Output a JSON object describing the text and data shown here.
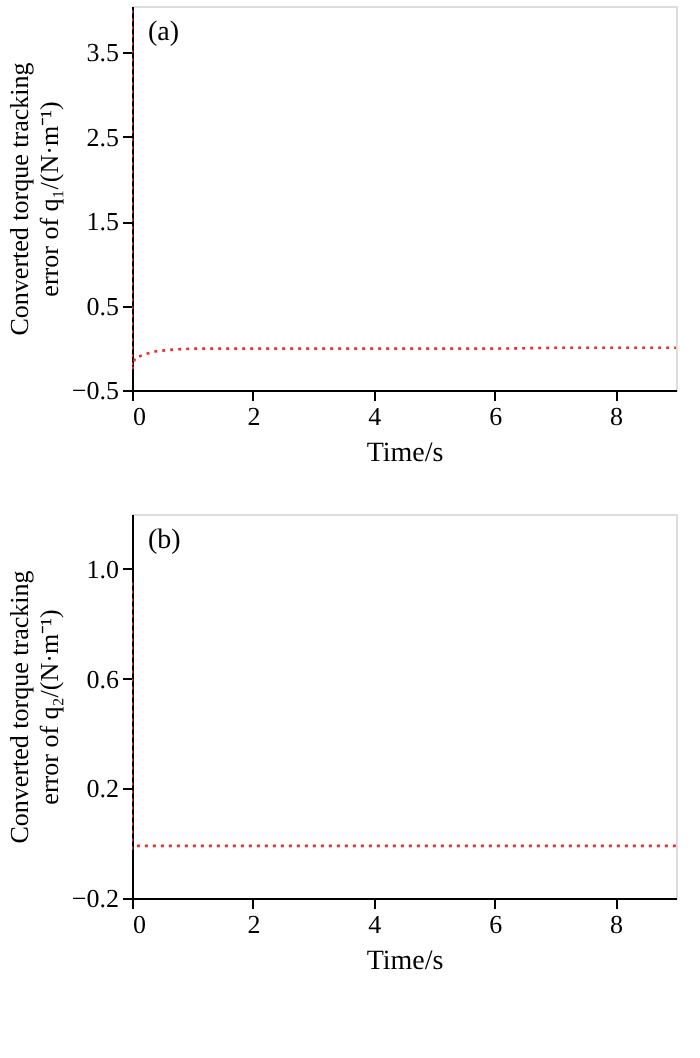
{
  "chart_data": [
    {
      "type": "line",
      "xlabel": "Time/s",
      "ylabel": [
        "Converted torque tracking",
        "error of q₁/(N·m⁻¹)"
      ],
      "annotations": [
        "(a)"
      ],
      "xlim": [
        0,
        9
      ],
      "xticks": [
        0,
        2,
        4,
        6,
        8
      ],
      "ylim": [
        -0.5,
        4.05
      ],
      "yticks": [
        -0.5,
        0.5,
        1.5,
        2.5,
        3.5
      ],
      "grid": false,
      "line_style": "dotted",
      "marker": "none",
      "series": [
        {
          "color": "#e8302e",
          "x": [
            0,
            0,
            0.05,
            0.2,
            0.4,
            0.7,
            1,
            2,
            3,
            4,
            5,
            6,
            7,
            8,
            9
          ],
          "values": [
            4.0,
            -0.26,
            -0.12,
            -0.08,
            -0.04,
            -0.02,
            -0.01,
            -0.01,
            -0.01,
            -0.01,
            -0.01,
            -0.01,
            0.0,
            0.0,
            0.0
          ]
        }
      ]
    },
    {
      "type": "line",
      "xlabel": "Time/s",
      "ylabel": [
        "Converted torque tracking",
        "error of q₂/(N·m⁻¹)"
      ],
      "annotations": [
        "(b)"
      ],
      "xlim": [
        0,
        9
      ],
      "xticks": [
        0,
        2,
        4,
        6,
        8
      ],
      "ylim": [
        -0.2,
        1.2
      ],
      "yticks": [
        -0.2,
        0.2,
        0.6,
        {
          "value": 1,
          "label": "1.0"
        }
      ],
      "grid": false,
      "line_style": "dotted",
      "marker": "none",
      "series": [
        {
          "color": "#e8302e",
          "x": [
            0,
            0,
            0.05,
            1,
            2,
            3,
            4,
            5,
            6,
            7,
            8,
            9
          ],
          "values": [
            0.95,
            -0.02,
            -0.01,
            -0.01,
            -0.01,
            -0.01,
            -0.01,
            -0.01,
            -0.01,
            -0.01,
            -0.01,
            -0.01
          ]
        }
      ]
    }
  ]
}
